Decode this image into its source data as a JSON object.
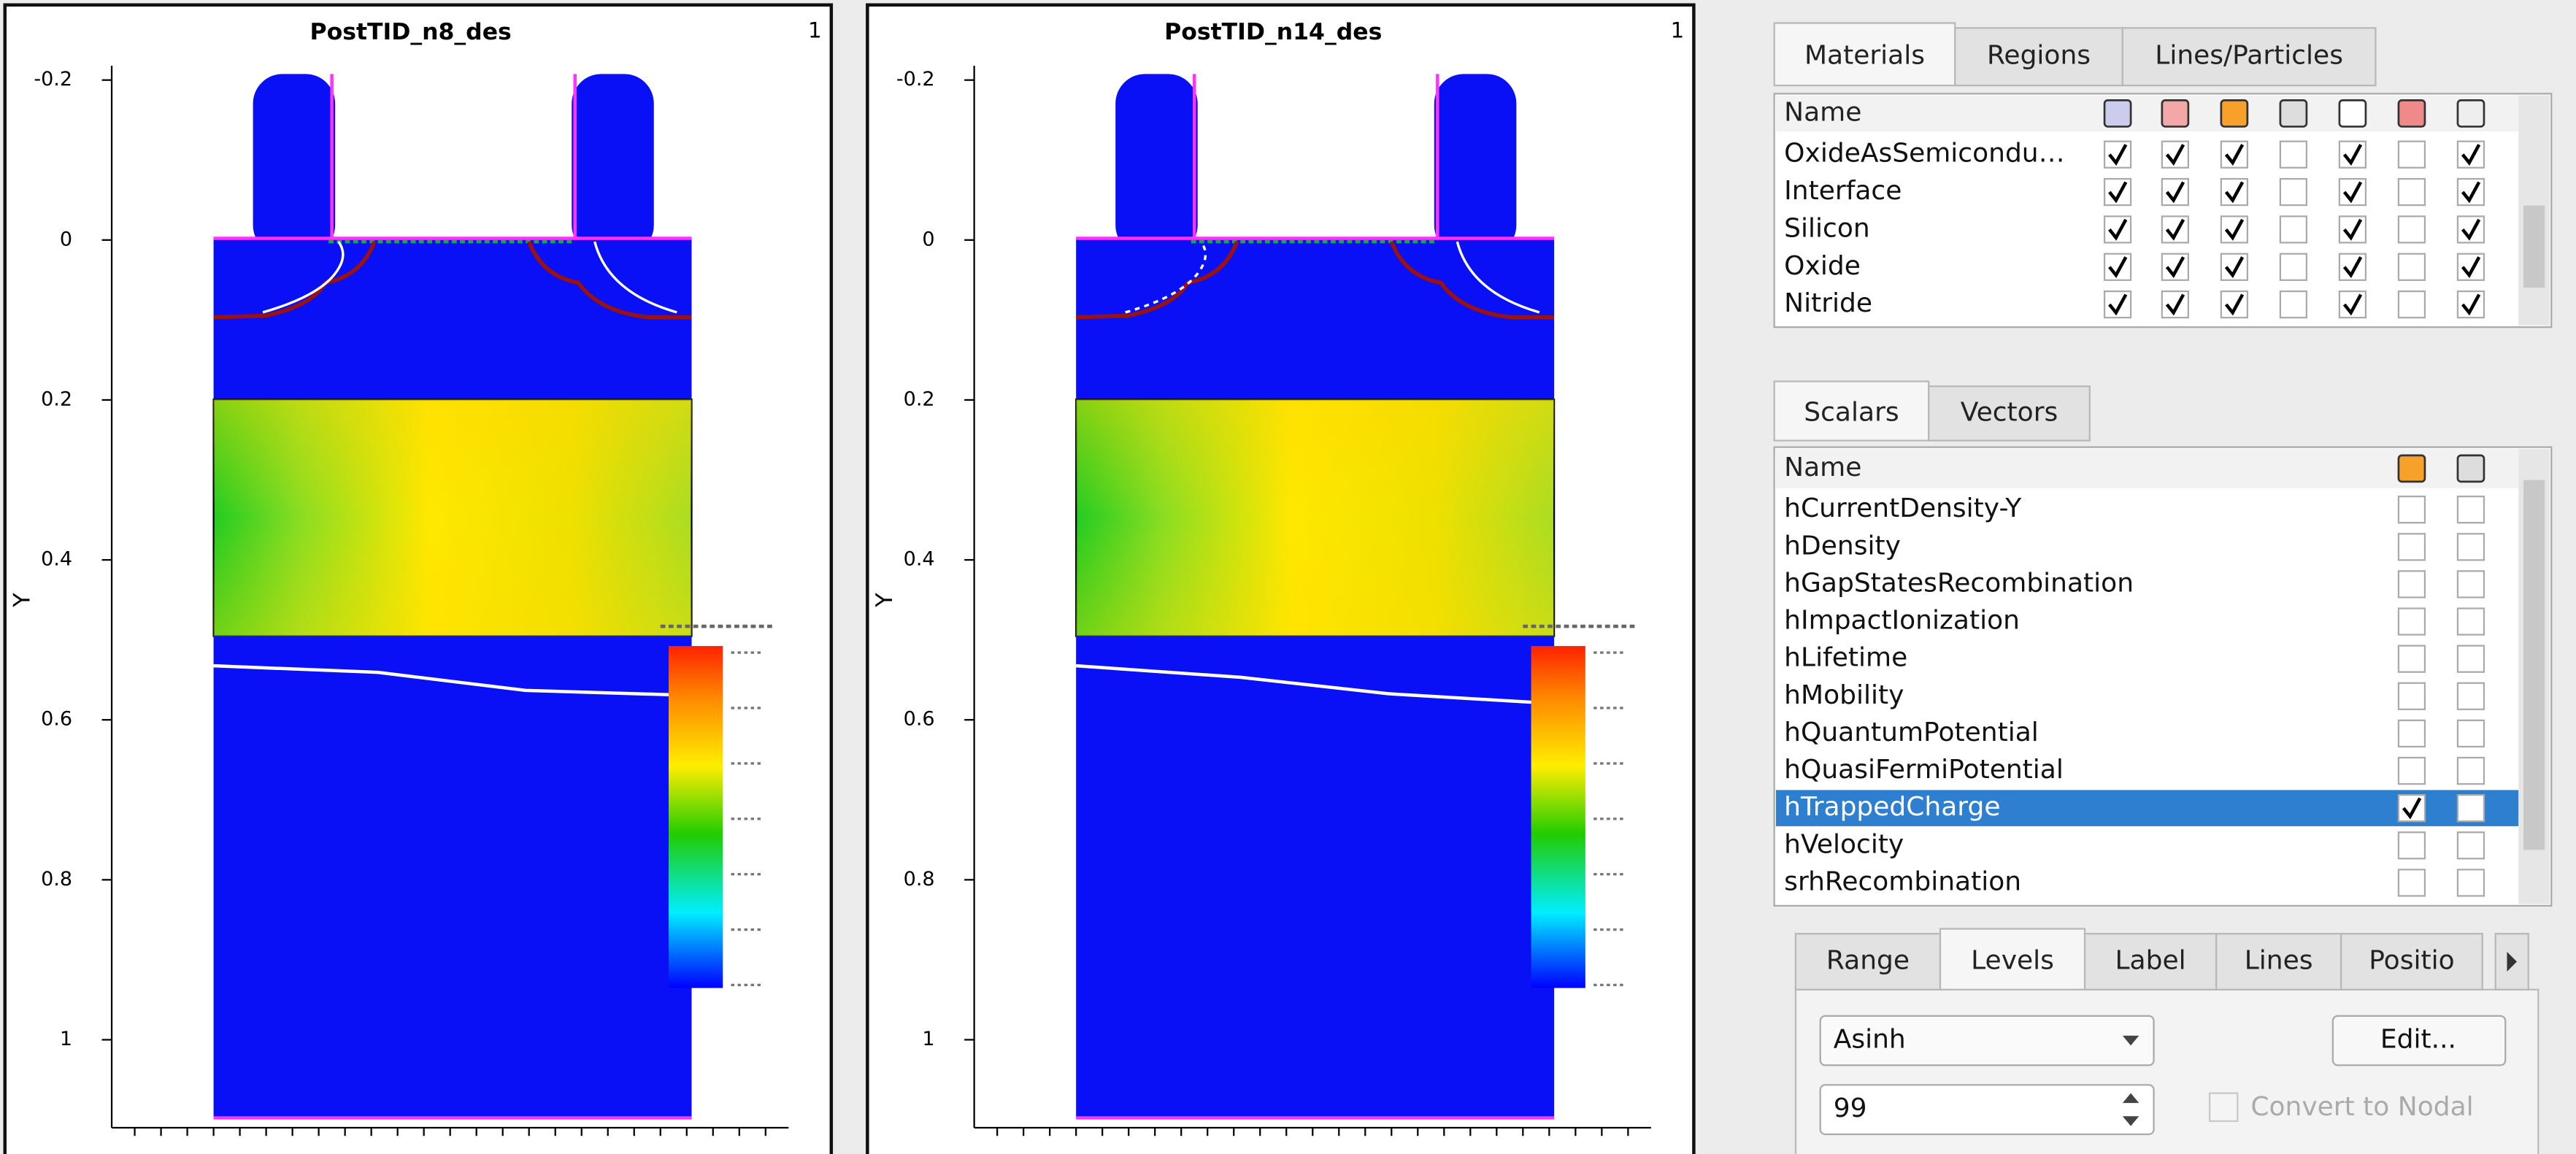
{
  "plots": [
    {
      "title": "PostTID_n8_des",
      "index": "1",
      "y_label": "Y",
      "yticks": [
        -0.2,
        0,
        0.2,
        0.4,
        0.6,
        0.8,
        1
      ]
    },
    {
      "title": "PostTID_n14_des",
      "index": "1",
      "y_label": "Y",
      "yticks": [
        -0.2,
        0,
        0.2,
        0.4,
        0.6,
        0.8,
        1
      ]
    }
  ],
  "materials_panel": {
    "tabs": [
      "Materials",
      "Regions",
      "Lines/Particles"
    ],
    "active_tab": 0,
    "header": "Name",
    "rows": [
      {
        "name": "OxideAsSemicondu…",
        "checks": [
          true,
          true,
          true,
          false,
          true,
          false,
          true
        ]
      },
      {
        "name": "Interface",
        "checks": [
          true,
          true,
          true,
          false,
          true,
          false,
          true
        ]
      },
      {
        "name": "Silicon",
        "checks": [
          true,
          true,
          true,
          false,
          true,
          false,
          true
        ]
      },
      {
        "name": "Oxide",
        "checks": [
          true,
          true,
          true,
          false,
          true,
          false,
          true
        ]
      },
      {
        "name": "Nitride",
        "checks": [
          true,
          true,
          true,
          false,
          true,
          false,
          true
        ]
      }
    ]
  },
  "scalars_panel": {
    "tabs": [
      "Scalars",
      "Vectors"
    ],
    "active_tab": 0,
    "header": "Name",
    "selected": 8,
    "rows": [
      {
        "name": "hCurrentDensity-Y",
        "checks": [
          false,
          false
        ]
      },
      {
        "name": "hDensity",
        "checks": [
          false,
          false
        ]
      },
      {
        "name": "hGapStatesRecombination",
        "checks": [
          false,
          false
        ]
      },
      {
        "name": "hImpactIonization",
        "checks": [
          false,
          false
        ]
      },
      {
        "name": "hLifetime",
        "checks": [
          false,
          false
        ]
      },
      {
        "name": "hMobility",
        "checks": [
          false,
          false
        ]
      },
      {
        "name": "hQuantumPotential",
        "checks": [
          false,
          false
        ]
      },
      {
        "name": "hQuasiFermiPotential",
        "checks": [
          false,
          false
        ]
      },
      {
        "name": "hTrappedCharge",
        "checks": [
          true,
          false
        ]
      },
      {
        "name": "hVelocity",
        "checks": [
          false,
          false
        ]
      },
      {
        "name": "srhRecombination",
        "checks": [
          false,
          false
        ]
      }
    ]
  },
  "levels": {
    "tabs": [
      "Range",
      "Levels",
      "Label",
      "Lines",
      "Positio"
    ],
    "active_tab": 1,
    "scale": "Asinh",
    "edit": "Edit...",
    "count": "99",
    "convert": "Convert to Nodal"
  }
}
